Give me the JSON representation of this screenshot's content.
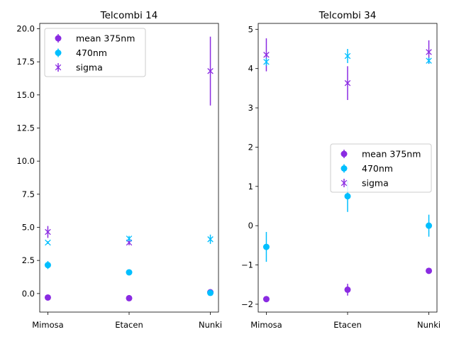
{
  "chart_data": [
    {
      "type": "scatter",
      "title": "Telcombi 14",
      "categories": [
        "Mimosa",
        "Etacen",
        "Nunki"
      ],
      "ylim": [
        -1.4,
        20.4
      ],
      "yticks": [
        "0.0",
        "2.5",
        "5.0",
        "7.5",
        "10.0",
        "12.5",
        "15.0",
        "17.5",
        "20.0"
      ],
      "legend_position": "upper-left",
      "series": [
        {
          "name": "mean 375nm",
          "marker": "circle",
          "color": "#8a2be2",
          "values": [
            -0.3,
            -0.35,
            0.1
          ],
          "errors": [
            0.1,
            0.1,
            0.1
          ]
        },
        {
          "name": "470nm",
          "marker": "circle",
          "color": "#00bfff",
          "values": [
            2.15,
            1.6,
            0.05
          ],
          "errors": [
            0.3,
            0.1,
            0.15
          ]
        },
        {
          "name": "sigma",
          "marker": "x",
          "color": "#8a2be2",
          "values": [
            4.65,
            3.85,
            16.8
          ],
          "errors": [
            0.45,
            0.2,
            2.6
          ]
        },
        {
          "name": "",
          "marker": "x",
          "color": "#00bfff",
          "values": [
            3.85,
            4.15,
            4.1
          ],
          "errors": [
            0.1,
            0.2,
            0.35
          ]
        }
      ]
    },
    {
      "type": "scatter",
      "title": "Telcombi 34",
      "categories": [
        "Mimosa",
        "Etacen",
        "Nunki"
      ],
      "ylim": [
        -2.2,
        5.15
      ],
      "yticks": [
        "−2",
        "−1",
        "0",
        "1",
        "2",
        "3",
        "4",
        "5"
      ],
      "legend_position": "center-right",
      "series": [
        {
          "name": "mean 375nm",
          "marker": "circle",
          "color": "#8a2be2",
          "values": [
            -1.87,
            -1.63,
            -1.15
          ],
          "errors": [
            0.05,
            0.15,
            0.05
          ]
        },
        {
          "name": "470nm",
          "marker": "circle",
          "color": "#00bfff",
          "values": [
            -0.54,
            0.75,
            0.0
          ],
          "errors": [
            0.38,
            0.4,
            0.28
          ]
        },
        {
          "name": "sigma",
          "marker": "x",
          "color": "#8a2be2",
          "values": [
            4.35,
            3.63,
            4.42
          ],
          "errors": [
            0.42,
            0.43,
            0.3
          ]
        },
        {
          "name": "",
          "marker": "x",
          "color": "#00bfff",
          "values": [
            4.17,
            4.32,
            4.2
          ],
          "errors": [
            0.1,
            0.18,
            0.08
          ]
        }
      ]
    }
  ]
}
